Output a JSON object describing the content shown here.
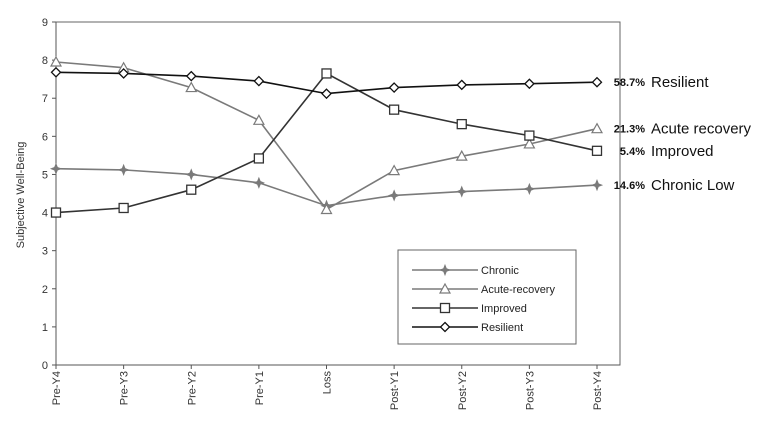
{
  "chart_data": {
    "type": "line",
    "ylabel": "Subjective Well-Being",
    "xlabel": "",
    "ylim": [
      0,
      9
    ],
    "yticks": [
      0,
      1,
      2,
      3,
      4,
      5,
      6,
      7,
      8,
      9
    ],
    "grid": false,
    "legend_position": "bottom-right",
    "categories": [
      "Pre-Y4",
      "Pre-Y3",
      "Pre-Y2",
      "Pre-Y1",
      "Loss",
      "Post-Y1",
      "Post-Y2",
      "Post-Y3",
      "Post-Y4"
    ],
    "series": [
      {
        "name": "Chronic",
        "marker": "star",
        "color": "#7a7a7a",
        "values": [
          5.15,
          5.12,
          5.0,
          4.78,
          4.18,
          4.45,
          4.55,
          4.62,
          4.72
        ],
        "end_percent": "14.6%",
        "end_label": "Chronic Low"
      },
      {
        "name": "Acute-recovery",
        "marker": "triangle",
        "color": "#7a7a7a",
        "values": [
          7.95,
          7.8,
          7.28,
          6.42,
          4.08,
          5.1,
          5.48,
          5.8,
          6.2
        ],
        "end_percent": "21.3%",
        "end_label": "Acute recovery"
      },
      {
        "name": "Improved",
        "marker": "square",
        "color": "#333333",
        "values": [
          4.0,
          4.12,
          4.6,
          5.42,
          7.65,
          6.7,
          6.32,
          6.02,
          5.62
        ],
        "end_percent": "5.4%",
        "end_label": "Improved"
      },
      {
        "name": "Resilient",
        "marker": "diamond",
        "color": "#111111",
        "values": [
          7.68,
          7.65,
          7.58,
          7.45,
          7.12,
          7.28,
          7.35,
          7.38,
          7.42
        ],
        "end_percent": "58.7%",
        "end_label": "Resilient"
      }
    ]
  }
}
